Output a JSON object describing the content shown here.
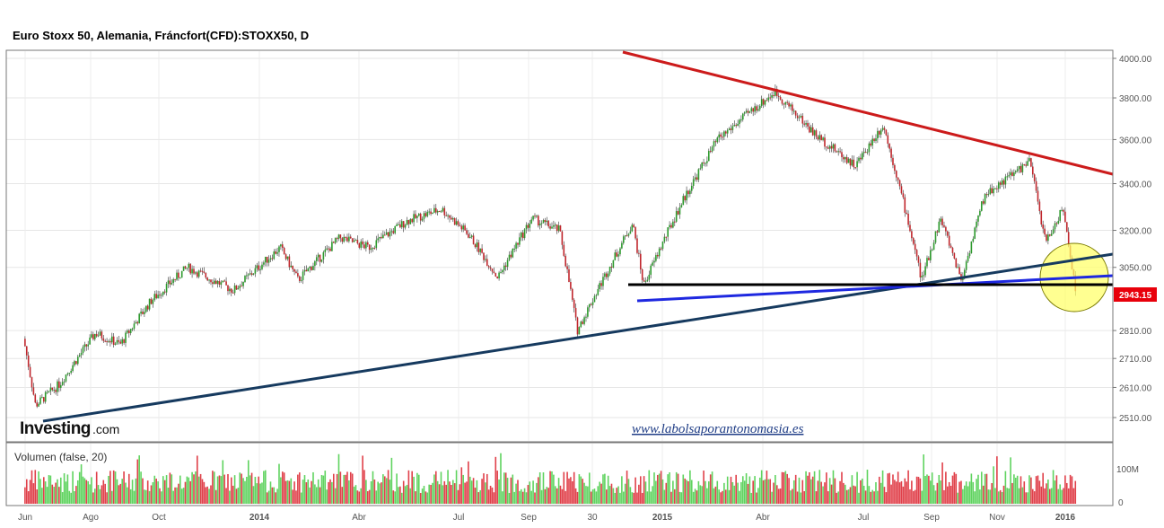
{
  "header": {
    "title": "Euro Stoxx 50, Alemania, Fráncfort(CFD):STOXX50, D"
  },
  "branding": {
    "logo_main": "Investing",
    "logo_suffix": ".com",
    "watermark": "www.labolsaporantonomasia.es"
  },
  "chart_data": {
    "type": "candlestick",
    "title": "Euro Stoxx 50, Alemania, Fráncfort(CFD):STOXX50, D",
    "y_axis": {
      "scale": "log",
      "position": "right",
      "ylim": [
        2440,
        4050
      ],
      "ticks": [
        "4000.00",
        "3800.00",
        "3600.00",
        "3400.00",
        "3200.00",
        "3050.00",
        "2810.00",
        "2710.00",
        "2610.00",
        "2510.00"
      ]
    },
    "x_axis": {
      "ticks": [
        "Jun",
        "Ago",
        "Oct",
        "2014",
        "Abr",
        "Jul",
        "Sep",
        "30",
        "2015",
        "Abr",
        "Jul",
        "Sep",
        "Nov",
        "2016"
      ]
    },
    "last_price": {
      "label": "2943.15",
      "value": 2943.15,
      "color": "#e8000b"
    },
    "approx_closes": [
      [
        "2013-06",
        2780
      ],
      [
        "2013-06-25",
        2550
      ],
      [
        "2013-07-15",
        2620
      ],
      [
        "2013-08-15",
        2800
      ],
      [
        "2013-09-05",
        2760
      ],
      [
        "2013-10-01",
        2920
      ],
      [
        "2013-11-01",
        3050
      ],
      [
        "2013-12-10",
        2960
      ],
      [
        "2014-01-20",
        3130
      ],
      [
        "2014-02-05",
        3000
      ],
      [
        "2014-03-15",
        3170
      ],
      [
        "2014-04-10",
        3130
      ],
      [
        "2014-05-15",
        3240
      ],
      [
        "2014-06-15",
        3290
      ],
      [
        "2014-07-10",
        3180
      ],
      [
        "2014-08-05",
        3010
      ],
      [
        "2014-09-05",
        3250
      ],
      [
        "2014-09-30",
        3200
      ],
      [
        "2014-10-16",
        2810
      ],
      [
        "2014-11-20",
        3100
      ],
      [
        "2014-12-05",
        3230
      ],
      [
        "2014-12-15",
        2980
      ],
      [
        "2015-01-20",
        3330
      ],
      [
        "2015-02-20",
        3600
      ],
      [
        "2015-04-13",
        3830
      ],
      [
        "2015-05-20",
        3620
      ],
      [
        "2015-06-25",
        3480
      ],
      [
        "2015-07-20",
        3670
      ],
      [
        "2015-08-24",
        3000
      ],
      [
        "2015-09-10",
        3250
      ],
      [
        "2015-09-29",
        3000
      ],
      [
        "2015-10-20",
        3350
      ],
      [
        "2015-11-30",
        3500
      ],
      [
        "2015-12-14",
        3150
      ],
      [
        "2015-12-30",
        3290
      ],
      [
        "2016-01-11",
        2943.15
      ]
    ],
    "trendlines": [
      {
        "name": "resistance",
        "color": "#cc1b1b"
      },
      {
        "name": "long-term-support",
        "color": "#163a5f"
      },
      {
        "name": "short-support",
        "color": "#1e28e0"
      },
      {
        "name": "horizontal-support",
        "color": "#000000"
      }
    ],
    "highlight": {
      "shape": "circle",
      "color": "#ffff66"
    },
    "volume": {
      "label": "Volumen (false, 20)",
      "ticks": [
        "100M",
        "0"
      ],
      "up_color": "#5fd35f",
      "down_color": "#e0404a"
    },
    "grid": true
  }
}
